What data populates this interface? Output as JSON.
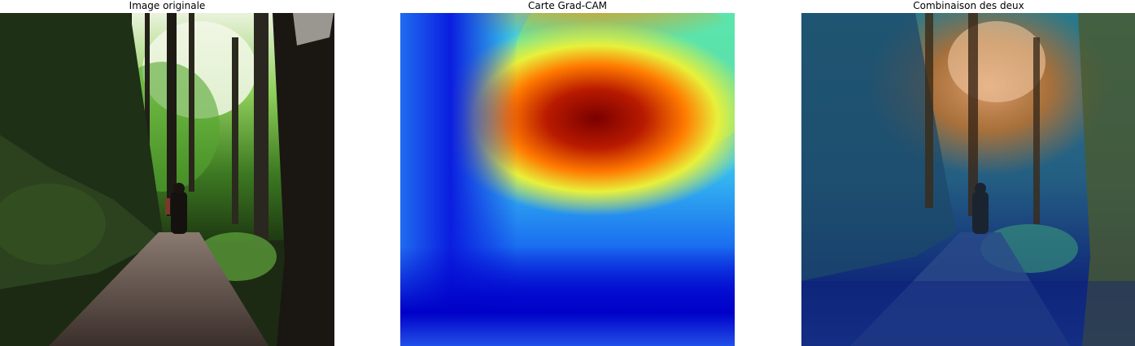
{
  "panels": [
    {
      "title": "Image originale"
    },
    {
      "title": "Carte Grad-CAM"
    },
    {
      "title": "Combinaison des deux"
    }
  ],
  "colors": {
    "background": "#ffffff",
    "heatmap_low": "#0000c8",
    "heatmap_mid": "#19e6e6",
    "heatmap_high": "#8b0000"
  }
}
